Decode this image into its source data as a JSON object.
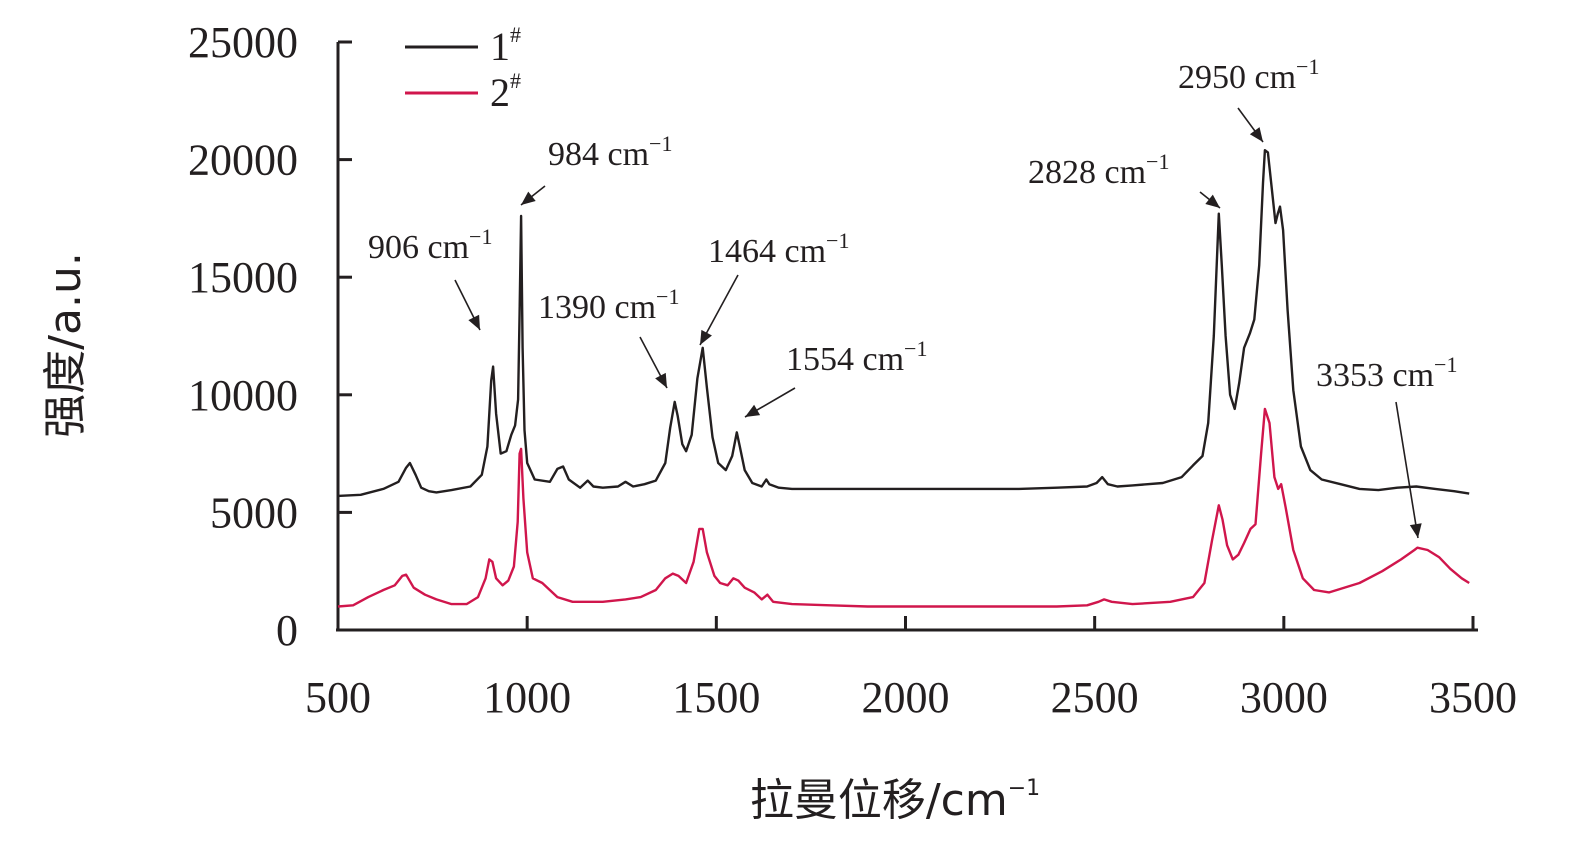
{
  "chart_data": {
    "type": "line",
    "xlabel": "拉曼位移/cm",
    "xlabel_sup": "−1",
    "ylabel": "强度/a.u.",
    "xlim": [
      500,
      3500
    ],
    "ylim": [
      0,
      25000
    ],
    "x_ticks": [
      500,
      1000,
      1500,
      2000,
      2500,
      3000,
      3500
    ],
    "y_ticks": [
      0,
      5000,
      10000,
      15000,
      20000,
      25000
    ],
    "legend_position": "top-left",
    "series": [
      {
        "name": "1",
        "name_sup": "#",
        "color": "#231f20",
        "points": [
          [
            500,
            5700
          ],
          [
            560,
            5750
          ],
          [
            620,
            6000
          ],
          [
            660,
            6300
          ],
          [
            680,
            6900
          ],
          [
            690,
            7100
          ],
          [
            705,
            6600
          ],
          [
            720,
            6050
          ],
          [
            740,
            5900
          ],
          [
            760,
            5850
          ],
          [
            800,
            5950
          ],
          [
            850,
            6100
          ],
          [
            880,
            6600
          ],
          [
            895,
            7800
          ],
          [
            905,
            10600
          ],
          [
            910,
            11200
          ],
          [
            918,
            9200
          ],
          [
            930,
            7500
          ],
          [
            945,
            7600
          ],
          [
            958,
            8300
          ],
          [
            968,
            8700
          ],
          [
            976,
            9800
          ],
          [
            980,
            13500
          ],
          [
            984,
            17600
          ],
          [
            988,
            12000
          ],
          [
            993,
            8500
          ],
          [
            1000,
            7100
          ],
          [
            1020,
            6400
          ],
          [
            1060,
            6300
          ],
          [
            1080,
            6850
          ],
          [
            1095,
            6950
          ],
          [
            1110,
            6400
          ],
          [
            1140,
            6050
          ],
          [
            1160,
            6350
          ],
          [
            1175,
            6100
          ],
          [
            1200,
            6050
          ],
          [
            1240,
            6100
          ],
          [
            1260,
            6300
          ],
          [
            1280,
            6100
          ],
          [
            1310,
            6200
          ],
          [
            1340,
            6350
          ],
          [
            1365,
            7100
          ],
          [
            1378,
            8600
          ],
          [
            1390,
            9700
          ],
          [
            1398,
            9100
          ],
          [
            1410,
            7900
          ],
          [
            1420,
            7600
          ],
          [
            1435,
            8300
          ],
          [
            1450,
            10700
          ],
          [
            1464,
            12000
          ],
          [
            1475,
            10300
          ],
          [
            1490,
            8200
          ],
          [
            1505,
            7100
          ],
          [
            1525,
            6800
          ],
          [
            1542,
            7400
          ],
          [
            1554,
            8400
          ],
          [
            1562,
            7800
          ],
          [
            1575,
            6800
          ],
          [
            1595,
            6250
          ],
          [
            1620,
            6100
          ],
          [
            1632,
            6400
          ],
          [
            1640,
            6200
          ],
          [
            1665,
            6050
          ],
          [
            1700,
            6000
          ],
          [
            1800,
            6000
          ],
          [
            1900,
            6000
          ],
          [
            2000,
            6000
          ],
          [
            2100,
            6000
          ],
          [
            2200,
            6000
          ],
          [
            2300,
            6000
          ],
          [
            2400,
            6050
          ],
          [
            2480,
            6100
          ],
          [
            2505,
            6250
          ],
          [
            2520,
            6500
          ],
          [
            2535,
            6200
          ],
          [
            2560,
            6100
          ],
          [
            2600,
            6150
          ],
          [
            2680,
            6250
          ],
          [
            2730,
            6500
          ],
          [
            2760,
            7000
          ],
          [
            2785,
            7400
          ],
          [
            2800,
            8800
          ],
          [
            2815,
            12500
          ],
          [
            2828,
            17700
          ],
          [
            2836,
            15500
          ],
          [
            2846,
            12500
          ],
          [
            2858,
            10000
          ],
          [
            2870,
            9400
          ],
          [
            2882,
            10500
          ],
          [
            2895,
            12000
          ],
          [
            2910,
            12600
          ],
          [
            2922,
            13200
          ],
          [
            2935,
            15500
          ],
          [
            2945,
            19000
          ],
          [
            2950,
            20400
          ],
          [
            2958,
            20300
          ],
          [
            2968,
            18800
          ],
          [
            2978,
            17300
          ],
          [
            2984,
            17700
          ],
          [
            2990,
            18000
          ],
          [
            2998,
            17000
          ],
          [
            3010,
            13600
          ],
          [
            3025,
            10200
          ],
          [
            3045,
            7800
          ],
          [
            3070,
            6800
          ],
          [
            3100,
            6400
          ],
          [
            3150,
            6200
          ],
          [
            3200,
            6000
          ],
          [
            3250,
            5950
          ],
          [
            3300,
            6050
          ],
          [
            3350,
            6100
          ],
          [
            3400,
            6000
          ],
          [
            3450,
            5900
          ],
          [
            3490,
            5800
          ]
        ]
      },
      {
        "name": "2",
        "name_sup": "#",
        "color": "#d0164c",
        "points": [
          [
            500,
            1000
          ],
          [
            540,
            1050
          ],
          [
            580,
            1400
          ],
          [
            620,
            1700
          ],
          [
            650,
            1900
          ],
          [
            670,
            2300
          ],
          [
            680,
            2350
          ],
          [
            700,
            1800
          ],
          [
            730,
            1500
          ],
          [
            760,
            1300
          ],
          [
            800,
            1100
          ],
          [
            840,
            1100
          ],
          [
            870,
            1400
          ],
          [
            890,
            2200
          ],
          [
            900,
            3000
          ],
          [
            908,
            2900
          ],
          [
            918,
            2200
          ],
          [
            935,
            1900
          ],
          [
            950,
            2100
          ],
          [
            965,
            2700
          ],
          [
            975,
            4600
          ],
          [
            980,
            7500
          ],
          [
            984,
            7700
          ],
          [
            990,
            5600
          ],
          [
            1000,
            3300
          ],
          [
            1015,
            2200
          ],
          [
            1040,
            2000
          ],
          [
            1080,
            1400
          ],
          [
            1120,
            1200
          ],
          [
            1200,
            1200
          ],
          [
            1260,
            1300
          ],
          [
            1300,
            1400
          ],
          [
            1340,
            1700
          ],
          [
            1365,
            2200
          ],
          [
            1385,
            2400
          ],
          [
            1400,
            2300
          ],
          [
            1420,
            2000
          ],
          [
            1440,
            2900
          ],
          [
            1455,
            4300
          ],
          [
            1464,
            4300
          ],
          [
            1475,
            3300
          ],
          [
            1495,
            2300
          ],
          [
            1510,
            2000
          ],
          [
            1530,
            1900
          ],
          [
            1545,
            2200
          ],
          [
            1558,
            2100
          ],
          [
            1575,
            1800
          ],
          [
            1600,
            1600
          ],
          [
            1620,
            1300
          ],
          [
            1635,
            1500
          ],
          [
            1650,
            1200
          ],
          [
            1700,
            1100
          ],
          [
            1800,
            1050
          ],
          [
            1900,
            1000
          ],
          [
            2000,
            1000
          ],
          [
            2200,
            1000
          ],
          [
            2400,
            1000
          ],
          [
            2480,
            1050
          ],
          [
            2510,
            1200
          ],
          [
            2525,
            1300
          ],
          [
            2545,
            1200
          ],
          [
            2600,
            1100
          ],
          [
            2700,
            1200
          ],
          [
            2760,
            1400
          ],
          [
            2790,
            2000
          ],
          [
            2810,
            3800
          ],
          [
            2828,
            5300
          ],
          [
            2838,
            4700
          ],
          [
            2850,
            3600
          ],
          [
            2865,
            3000
          ],
          [
            2880,
            3200
          ],
          [
            2895,
            3700
          ],
          [
            2912,
            4300
          ],
          [
            2925,
            4500
          ],
          [
            2940,
            7500
          ],
          [
            2950,
            9400
          ],
          [
            2962,
            8800
          ],
          [
            2975,
            6500
          ],
          [
            2985,
            6000
          ],
          [
            2993,
            6200
          ],
          [
            3005,
            5200
          ],
          [
            3025,
            3400
          ],
          [
            3050,
            2200
          ],
          [
            3080,
            1700
          ],
          [
            3120,
            1600
          ],
          [
            3200,
            2000
          ],
          [
            3260,
            2500
          ],
          [
            3310,
            3000
          ],
          [
            3345,
            3400
          ],
          [
            3353,
            3500
          ],
          [
            3380,
            3400
          ],
          [
            3410,
            3100
          ],
          [
            3440,
            2600
          ],
          [
            3470,
            2200
          ],
          [
            3490,
            2000
          ]
        ]
      }
    ],
    "annotations": [
      {
        "text": "906 cm",
        "sup": "−1",
        "x": 906
      },
      {
        "text": "984 cm",
        "sup": "−1",
        "x": 984
      },
      {
        "text": "1390 cm",
        "sup": "−1",
        "x": 1390
      },
      {
        "text": "1464 cm",
        "sup": "−1",
        "x": 1464
      },
      {
        "text": "1554 cm",
        "sup": "−1",
        "x": 1554
      },
      {
        "text": "2828 cm",
        "sup": "−1",
        "x": 2828
      },
      {
        "text": "2950 cm",
        "sup": "−1",
        "x": 2950
      },
      {
        "text": "3353 cm",
        "sup": "−1",
        "x": 3353
      }
    ]
  }
}
